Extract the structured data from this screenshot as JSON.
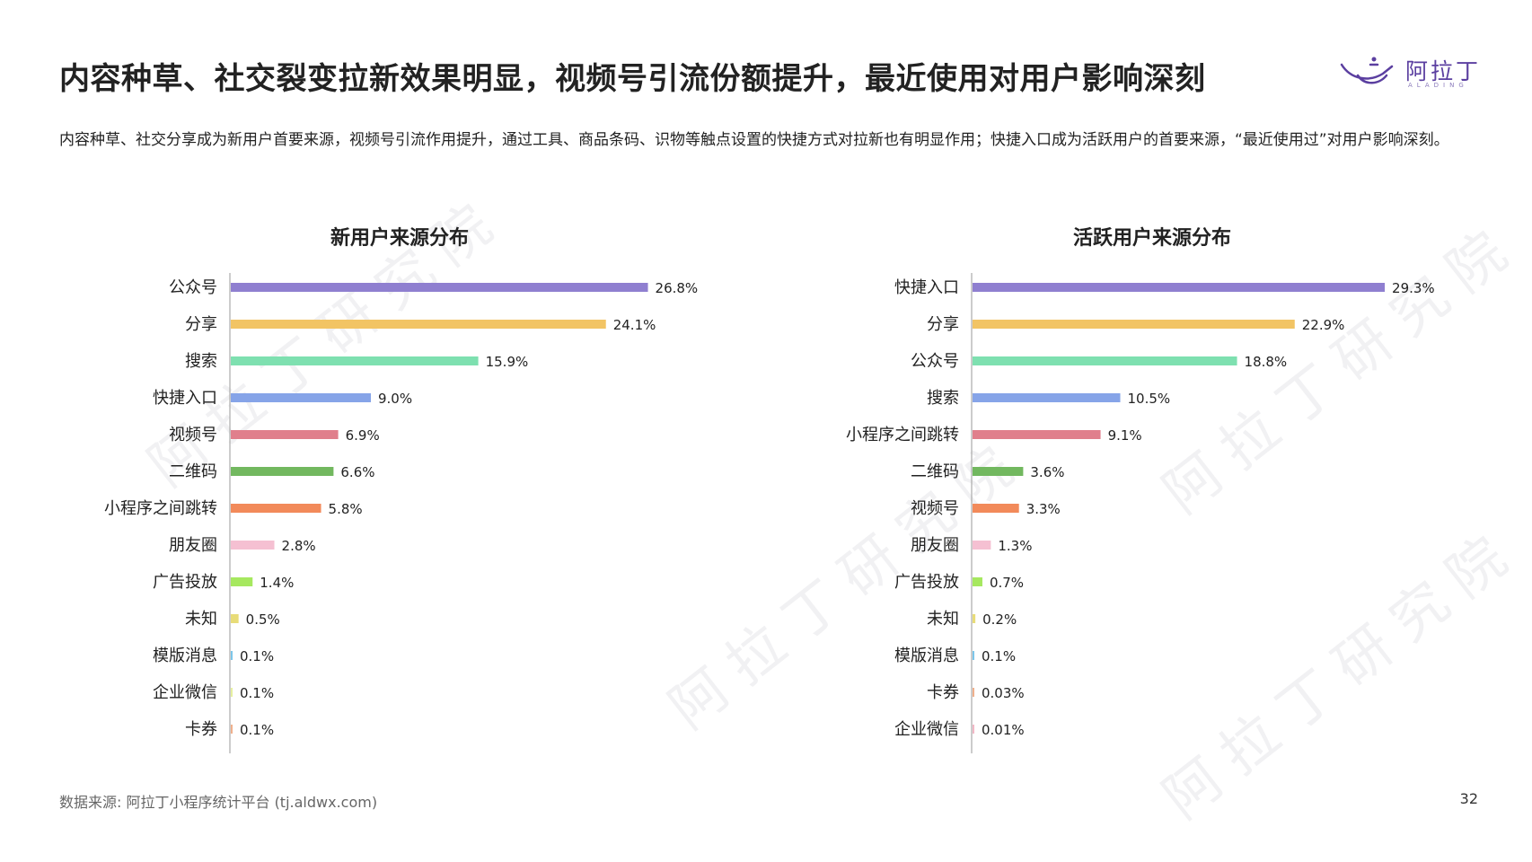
{
  "slide": {
    "title": "内容种草、社交裂变拉新效果明显，视频号引流份额提升，最近使用对用户影响深刻",
    "subtitle": "内容种草、社交分享成为新用户首要来源，视频号引流作用提升，通过工具、商品条码、识物等触点设置的快捷方式对拉新也有明显作用；快捷入口成为活跃用户的首要来源，“最近使用过”对用户影响深刻。",
    "logo_text": "阿拉丁",
    "logo_sub": "ALADING",
    "watermark": "阿拉丁研究院",
    "source": "数据来源: 阿拉丁小程序统计平台 (tj.aldwx.com)",
    "page_number": "32"
  },
  "chart_data": [
    {
      "type": "bar",
      "orientation": "horizontal",
      "title": "新用户来源分布",
      "categories": [
        "公众号",
        "分享",
        "搜索",
        "快捷入口",
        "视频号",
        "二维码",
        "小程序之间跳转",
        "朋友圈",
        "广告投放",
        "未知",
        "模版消息",
        "企业微信",
        "卡券"
      ],
      "values": [
        26.8,
        24.1,
        15.9,
        9.0,
        6.9,
        6.6,
        5.8,
        2.8,
        1.4,
        0.5,
        0.1,
        0.1,
        0.1
      ],
      "labels": [
        "26.8%",
        "24.1%",
        "15.9%",
        "9.0%",
        "6.9%",
        "6.6%",
        "5.8%",
        "2.8%",
        "1.4%",
        "0.5%",
        "0.1%",
        "0.1%",
        "0.1%"
      ],
      "colors": [
        "#8f7fd0",
        "#f2c464",
        "#7ee0b0",
        "#86a4e8",
        "#e07f8c",
        "#72b85f",
        "#f28a5a",
        "#f5c0d2",
        "#a6e85f",
        "#e8dc78",
        "#7cc6ea",
        "#e6f0a0",
        "#f0b08c"
      ],
      "xlim": [
        0,
        30
      ]
    },
    {
      "type": "bar",
      "orientation": "horizontal",
      "title": "活跃用户来源分布",
      "categories": [
        "快捷入口",
        "分享",
        "公众号",
        "搜索",
        "小程序之间跳转",
        "二维码",
        "视频号",
        "朋友圈",
        "广告投放",
        "未知",
        "模版消息",
        "卡券",
        "企业微信"
      ],
      "values": [
        29.3,
        22.9,
        18.8,
        10.5,
        9.1,
        3.6,
        3.3,
        1.3,
        0.7,
        0.2,
        0.1,
        0.03,
        0.01
      ],
      "labels": [
        "29.3%",
        "22.9%",
        "18.8%",
        "10.5%",
        "9.1%",
        "3.6%",
        "3.3%",
        "1.3%",
        "0.7%",
        "0.2%",
        "0.1%",
        "0.03%",
        "0.01%"
      ],
      "colors": [
        "#8f7fd0",
        "#f2c464",
        "#7ee0b0",
        "#86a4e8",
        "#e07f8c",
        "#72b85f",
        "#f28a5a",
        "#f5c0d2",
        "#a6e85f",
        "#e8dc78",
        "#7cc6ea",
        "#f0b08c",
        "#f2b8c6"
      ],
      "xlim": [
        0,
        30
      ]
    }
  ]
}
